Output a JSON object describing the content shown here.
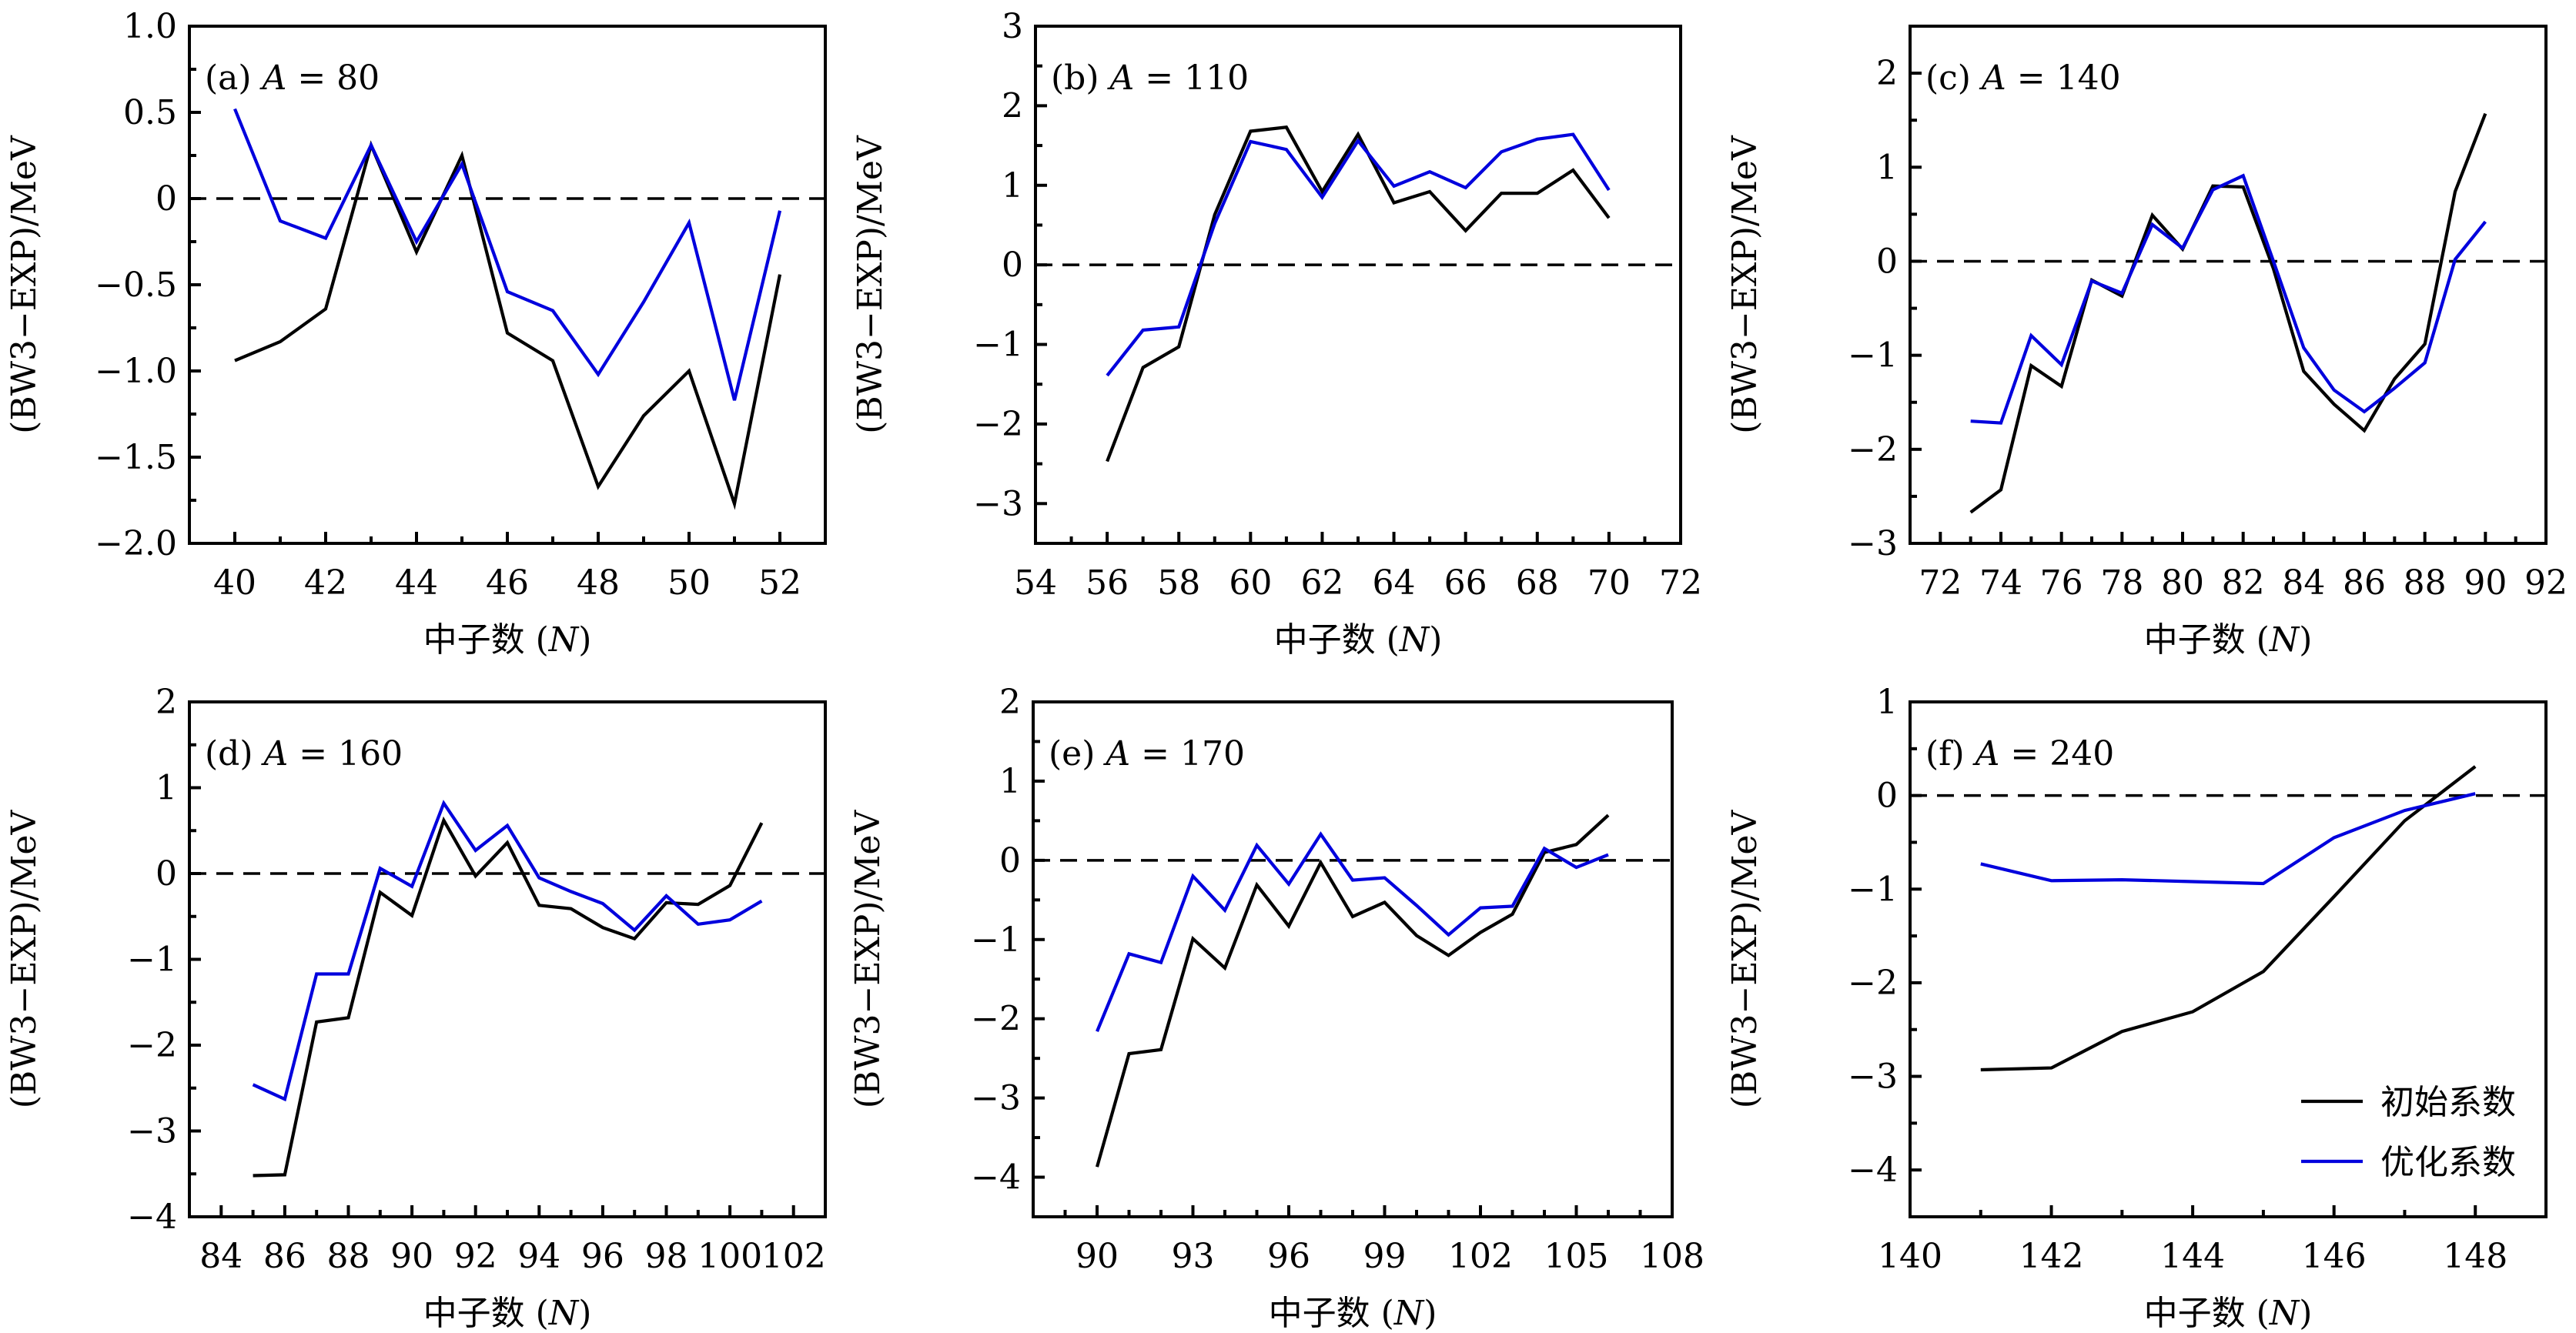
{
  "figure": {
    "series_legend": [
      {
        "name": "初始系数",
        "color": "#000000"
      },
      {
        "name": "优化系数",
        "color": "#0000dd"
      }
    ],
    "legend_panel": "f",
    "legend_position": "bottom-right",
    "reference_line": {
      "y": 0,
      "style": "dashed",
      "color": "#000000"
    }
  },
  "chart_data": [
    {
      "type": "line",
      "panel": "a",
      "title": "(a) A = 80",
      "title_prefix": "(a)",
      "title_var": "A",
      "title_value": "= 80",
      "xlabel": "中子数 (N)",
      "ylabel": "(BW3−EXP)/MeV",
      "xlim": [
        39,
        53
      ],
      "ylim": [
        -2.0,
        1.0
      ],
      "xticks": [
        40,
        42,
        44,
        46,
        48,
        50,
        52
      ],
      "xminor": [
        39,
        41,
        43,
        45,
        47,
        49,
        51,
        53
      ],
      "yticks": [
        -2.0,
        -1.5,
        -1.0,
        -0.5,
        0,
        0.5,
        1.0
      ],
      "yticklabels": [
        "−2.0",
        "−1.5",
        "−1.0",
        "−0.5",
        "0",
        "0.5",
        "1.0"
      ],
      "yminor": [
        -1.75,
        -1.25,
        -0.75,
        -0.25,
        0.25,
        0.75
      ],
      "x": [
        40,
        41,
        42,
        43,
        44,
        45,
        46,
        47,
        48,
        49,
        50,
        51,
        52
      ],
      "series": [
        {
          "name": "初始系数",
          "values": [
            -0.94,
            -0.83,
            -0.64,
            0.31,
            -0.31,
            0.25,
            -0.78,
            -0.94,
            -1.67,
            -1.26,
            -1.0,
            -1.77,
            -0.44
          ]
        },
        {
          "name": "优化系数",
          "values": [
            0.52,
            -0.13,
            -0.23,
            0.31,
            -0.25,
            0.2,
            -0.54,
            -0.65,
            -1.02,
            -0.6,
            -0.14,
            -1.17,
            -0.07
          ]
        }
      ]
    },
    {
      "type": "line",
      "panel": "b",
      "title": "(b) A = 110",
      "title_prefix": "(b)",
      "title_var": "A",
      "title_value": "= 110",
      "xlabel": "中子数 (N)",
      "ylabel": "(BW3−EXP)/MeV",
      "xlim": [
        54,
        72
      ],
      "ylim": [
        -3.5,
        3
      ],
      "xticks": [
        54,
        56,
        58,
        60,
        62,
        64,
        66,
        68,
        70,
        72
      ],
      "xminor": [
        55,
        57,
        59,
        61,
        63,
        65,
        67,
        69,
        71
      ],
      "yticks": [
        -3,
        -2,
        -1,
        0,
        1,
        2,
        3
      ],
      "yticklabels": [
        "−3",
        "−2",
        "−1",
        "0",
        "1",
        "2",
        "3"
      ],
      "yminor": [
        -2.5,
        -1.5,
        -0.5,
        0.5,
        1.5,
        2.5
      ],
      "x": [
        56,
        57,
        58,
        59,
        60,
        61,
        62,
        63,
        64,
        65,
        66,
        67,
        68,
        69,
        70
      ],
      "series": [
        {
          "name": "初始系数",
          "values": [
            -2.47,
            -1.29,
            -1.03,
            0.63,
            1.68,
            1.73,
            0.92,
            1.64,
            0.78,
            0.92,
            0.43,
            0.9,
            0.9,
            1.19,
            0.59
          ]
        },
        {
          "name": "优化系数",
          "values": [
            -1.39,
            -0.82,
            -0.78,
            0.52,
            1.55,
            1.45,
            0.85,
            1.56,
            0.99,
            1.17,
            0.97,
            1.42,
            1.58,
            1.64,
            0.94
          ]
        }
      ]
    },
    {
      "type": "line",
      "panel": "c",
      "title": "(c) A = 140",
      "title_prefix": "(c)",
      "title_var": "A",
      "title_value": "= 140",
      "xlabel": "中子数 (N)",
      "ylabel": "(BW3−EXP)/MeV",
      "xlim": [
        71,
        92
      ],
      "ylim": [
        -3,
        2.5
      ],
      "xticks": [
        72,
        74,
        76,
        78,
        80,
        82,
        84,
        86,
        88,
        90,
        92
      ],
      "xminor": [
        73,
        75,
        77,
        79,
        81,
        83,
        85,
        87,
        89,
        91
      ],
      "yticks": [
        -3,
        -2,
        -1,
        0,
        1,
        2
      ],
      "yticklabels": [
        "−3",
        "−2",
        "−1",
        "0",
        "1",
        "2"
      ],
      "yminor": [
        -2.5,
        -1.5,
        -0.5,
        0.5,
        1.5
      ],
      "x": [
        73,
        74,
        75,
        76,
        77,
        78,
        79,
        80,
        81,
        82,
        83,
        84,
        85,
        86,
        87,
        88,
        89,
        90
      ],
      "series": [
        {
          "name": "初始系数",
          "values": [
            -2.67,
            -2.43,
            -1.11,
            -1.33,
            -0.2,
            -0.37,
            0.49,
            0.13,
            0.8,
            0.79,
            -0.08,
            -1.17,
            -1.52,
            -1.8,
            -1.25,
            -0.88,
            0.74,
            1.57
          ]
        },
        {
          "name": "优化系数",
          "values": [
            -1.7,
            -1.72,
            -0.79,
            -1.1,
            -0.21,
            -0.34,
            0.39,
            0.14,
            0.76,
            0.91,
            0.0,
            -0.92,
            -1.37,
            -1.6,
            -1.35,
            -1.08,
            0.02,
            0.42
          ]
        }
      ]
    },
    {
      "type": "line",
      "panel": "d",
      "title": "(d) A = 160",
      "title_prefix": "(d)",
      "title_var": "A",
      "title_value": "= 160",
      "xlabel": "中子数 (N)",
      "ylabel": "(BW3−EXP)/MeV",
      "xlim": [
        83,
        103
      ],
      "ylim": [
        -4,
        2
      ],
      "xticks": [
        84,
        86,
        88,
        90,
        92,
        94,
        96,
        98,
        100,
        102
      ],
      "xminor": [
        85,
        87,
        89,
        91,
        93,
        95,
        97,
        99,
        101
      ],
      "yticks": [
        -4,
        -3,
        -2,
        -1,
        0,
        1,
        2
      ],
      "yticklabels": [
        "−4",
        "−3",
        "−2",
        "−1",
        "0",
        "1",
        "2"
      ],
      "yminor": [
        -3.5,
        -2.5,
        -1.5,
        -0.5,
        0.5,
        1.5
      ],
      "x": [
        85,
        86,
        87,
        88,
        89,
        90,
        91,
        92,
        93,
        94,
        95,
        96,
        97,
        98,
        99,
        100,
        101
      ],
      "series": [
        {
          "name": "初始系数",
          "values": [
            -3.52,
            -3.51,
            -1.73,
            -1.68,
            -0.22,
            -0.49,
            0.62,
            -0.03,
            0.36,
            -0.37,
            -0.41,
            -0.63,
            -0.76,
            -0.34,
            -0.36,
            -0.14,
            0.59
          ]
        },
        {
          "name": "优化系数",
          "values": [
            -2.46,
            -2.63,
            -1.17,
            -1.17,
            0.06,
            -0.15,
            0.82,
            0.27,
            0.56,
            -0.05,
            -0.21,
            -0.35,
            -0.66,
            -0.26,
            -0.59,
            -0.54,
            -0.32
          ]
        }
      ]
    },
    {
      "type": "line",
      "panel": "e",
      "title": "(e) A = 170",
      "title_prefix": "(e)",
      "title_var": "A",
      "title_value": "= 170",
      "xlabel": "中子数 (N)",
      "ylabel": "(BW3−EXP)/MeV",
      "xlim": [
        88,
        108
      ],
      "ylim": [
        -4.5,
        2
      ],
      "xticks": [
        90,
        93,
        96,
        99,
        102,
        105,
        108
      ],
      "xminor": [
        89,
        91,
        92,
        94,
        95,
        97,
        98,
        100,
        101,
        103,
        104,
        106,
        107
      ],
      "yticks": [
        -4,
        -3,
        -2,
        -1,
        0,
        1,
        2
      ],
      "yticklabels": [
        "−4",
        "−3",
        "−2",
        "−1",
        "0",
        "1",
        "2"
      ],
      "yminor": [
        -3.5,
        -2.5,
        -1.5,
        -0.5,
        0.5,
        1.5
      ],
      "x": [
        90,
        91,
        92,
        93,
        94,
        95,
        96,
        97,
        98,
        99,
        100,
        101,
        102,
        103,
        104,
        105,
        106
      ],
      "series": [
        {
          "name": "初始系数",
          "values": [
            -3.87,
            -2.44,
            -2.39,
            -0.99,
            -1.36,
            -0.31,
            -0.83,
            -0.03,
            -0.71,
            -0.53,
            -0.95,
            -1.2,
            -0.91,
            -0.68,
            0.1,
            0.2,
            0.57
          ]
        },
        {
          "name": "优化系数",
          "values": [
            -2.16,
            -1.18,
            -1.29,
            -0.2,
            -0.63,
            0.19,
            -0.3,
            0.33,
            -0.25,
            -0.22,
            -0.57,
            -0.94,
            -0.6,
            -0.58,
            0.15,
            -0.09,
            0.07
          ]
        }
      ]
    },
    {
      "type": "line",
      "panel": "f",
      "title": "(f) A = 240",
      "title_prefix": "(f)",
      "title_var": "A",
      "title_value": "= 240",
      "xlabel": "中子数 (N)",
      "ylabel": "(BW3−EXP)/MeV",
      "xlim": [
        140,
        149
      ],
      "ylim": [
        -4.5,
        1
      ],
      "xticks": [
        140,
        142,
        144,
        146,
        148
      ],
      "xminor": [
        141,
        143,
        145,
        147
      ],
      "yticks": [
        -4,
        -3,
        -2,
        -1,
        0,
        1
      ],
      "yticklabels": [
        "−4",
        "−3",
        "−2",
        "−1",
        "0",
        "1"
      ],
      "yminor": [
        -3.5,
        -2.5,
        -1.5,
        -0.5,
        0.5
      ],
      "x": [
        141,
        142,
        143,
        144,
        145,
        146,
        147,
        148
      ],
      "series": [
        {
          "name": "初始系数",
          "values": [
            -2.93,
            -2.91,
            -2.52,
            -2.31,
            -1.88,
            -1.08,
            -0.27,
            0.31
          ]
        },
        {
          "name": "优化系数",
          "values": [
            -0.73,
            -0.91,
            -0.9,
            -0.92,
            -0.94,
            -0.45,
            -0.16,
            0.02
          ]
        }
      ],
      "legend": {
        "position": "bottom-right",
        "entries": [
          "初始系数",
          "优化系数"
        ]
      }
    }
  ]
}
